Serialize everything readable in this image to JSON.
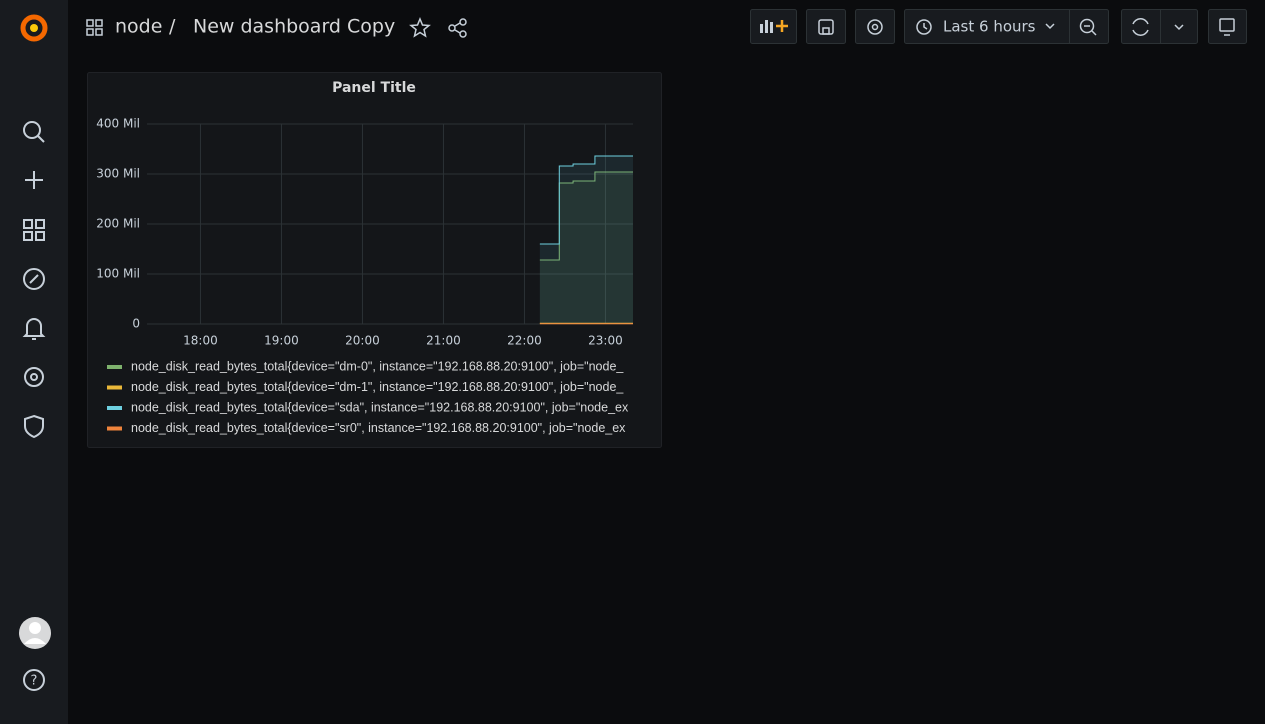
{
  "header": {
    "folder": "node",
    "separator": "/",
    "title": "New dashboard Copy",
    "time_range": "Last 6 hours"
  },
  "chart_data": {
    "type": "line",
    "title": "Panel Title",
    "x": [
      22.19,
      22.43,
      22.43,
      22.6,
      22.6,
      22.87,
      22.87,
      23.34
    ],
    "xlim": [
      17.34,
      23.34
    ],
    "xticks": [
      {
        "value": 18,
        "label": "18:00"
      },
      {
        "value": 19,
        "label": "19:00"
      },
      {
        "value": 20,
        "label": "20:00"
      },
      {
        "value": 21,
        "label": "21:00"
      },
      {
        "value": 22,
        "label": "22:00"
      },
      {
        "value": 23,
        "label": "23:00"
      }
    ],
    "ylim": [
      0,
      400000000
    ],
    "yticks": [
      0,
      {
        "value": 100000000,
        "label": "100 Mil"
      },
      {
        "value": 200000000,
        "label": "200 Mil"
      },
      {
        "value": 300000000,
        "label": "300 Mil"
      },
      {
        "value": 400000000,
        "label": "400 Mil"
      }
    ],
    "grid": true,
    "series": [
      {
        "name": "node_disk_read_bytes_total{device=\"dm-0\", instance=\"192.168.88.20:9100\", job=\"node_",
        "color": "#7eb26d",
        "values": [
          128000000,
          128000000,
          282000000,
          282000000,
          286000000,
          286000000,
          304000000,
          304000000
        ]
      },
      {
        "name": "node_disk_read_bytes_total{device=\"dm-1\", instance=\"192.168.88.20:9100\", job=\"node_",
        "color": "#eab839",
        "values": [
          1500000,
          1500000,
          1500000,
          1500000,
          1500000,
          1500000,
          1500000,
          1500000
        ]
      },
      {
        "name": "node_disk_read_bytes_total{device=\"sda\", instance=\"192.168.88.20:9100\", job=\"node_ex",
        "color": "#6ed0e0",
        "values": [
          160000000,
          160000000,
          316000000,
          316000000,
          320000000,
          320000000,
          336000000,
          336000000
        ]
      },
      {
        "name": "node_disk_read_bytes_total{device=\"sr0\", instance=\"192.168.88.20:9100\", job=\"node_ex",
        "color": "#ef843c",
        "values": [
          500000,
          500000,
          500000,
          500000,
          500000,
          500000,
          500000,
          500000
        ]
      }
    ]
  }
}
